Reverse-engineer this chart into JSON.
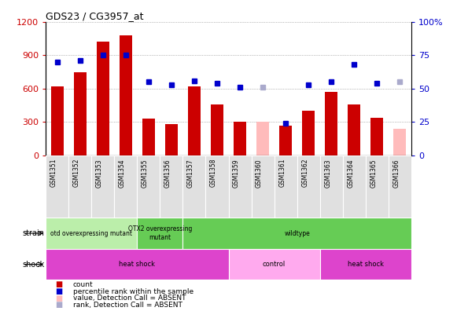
{
  "title": "GDS23 / CG3957_at",
  "samples": [
    "GSM1351",
    "GSM1352",
    "GSM1353",
    "GSM1354",
    "GSM1355",
    "GSM1356",
    "GSM1357",
    "GSM1358",
    "GSM1359",
    "GSM1360",
    "GSM1361",
    "GSM1362",
    "GSM1363",
    "GSM1364",
    "GSM1365",
    "GSM1366"
  ],
  "bar_values": [
    620,
    750,
    1020,
    1080,
    330,
    280,
    620,
    460,
    300,
    null,
    270,
    400,
    570,
    460,
    340,
    null
  ],
  "bar_absent": [
    null,
    null,
    null,
    null,
    null,
    null,
    null,
    null,
    null,
    300,
    null,
    null,
    null,
    null,
    null,
    240
  ],
  "dot_values": [
    70,
    71,
    75,
    75,
    55,
    53,
    56,
    54,
    51,
    null,
    24,
    53,
    55,
    68,
    54,
    null
  ],
  "dot_absent": [
    null,
    null,
    null,
    null,
    null,
    null,
    null,
    null,
    null,
    51,
    null,
    null,
    null,
    null,
    null,
    55
  ],
  "bar_color": "#cc0000",
  "bar_absent_color": "#ffbbbb",
  "dot_color": "#0000cc",
  "dot_absent_color": "#aaaacc",
  "ylim_left": [
    0,
    1200
  ],
  "ylim_right": [
    0,
    100
  ],
  "yticks_left": [
    0,
    300,
    600,
    900,
    1200
  ],
  "yticks_right": [
    0,
    25,
    50,
    75,
    100
  ],
  "strain_configs": [
    {
      "start": 0,
      "end": 4,
      "color": "#bbeeaa",
      "label": "otd overexpressing mutant"
    },
    {
      "start": 4,
      "end": 6,
      "color": "#66cc55",
      "label": "OTX2 overexpressing\nmutant"
    },
    {
      "start": 6,
      "end": 16,
      "color": "#66cc55",
      "label": "wildtype"
    }
  ],
  "shock_configs": [
    {
      "start": 0,
      "end": 8,
      "color": "#dd44cc",
      "label": "heat shock"
    },
    {
      "start": 8,
      "end": 12,
      "color": "#ffaaee",
      "label": "control"
    },
    {
      "start": 12,
      "end": 16,
      "color": "#dd44cc",
      "label": "heat shock"
    }
  ],
  "legend_items": [
    {
      "label": "count",
      "color": "#cc0000"
    },
    {
      "label": "percentile rank within the sample",
      "color": "#0000cc"
    },
    {
      "label": "value, Detection Call = ABSENT",
      "color": "#ffbbbb"
    },
    {
      "label": "rank, Detection Call = ABSENT",
      "color": "#aaaacc"
    }
  ]
}
